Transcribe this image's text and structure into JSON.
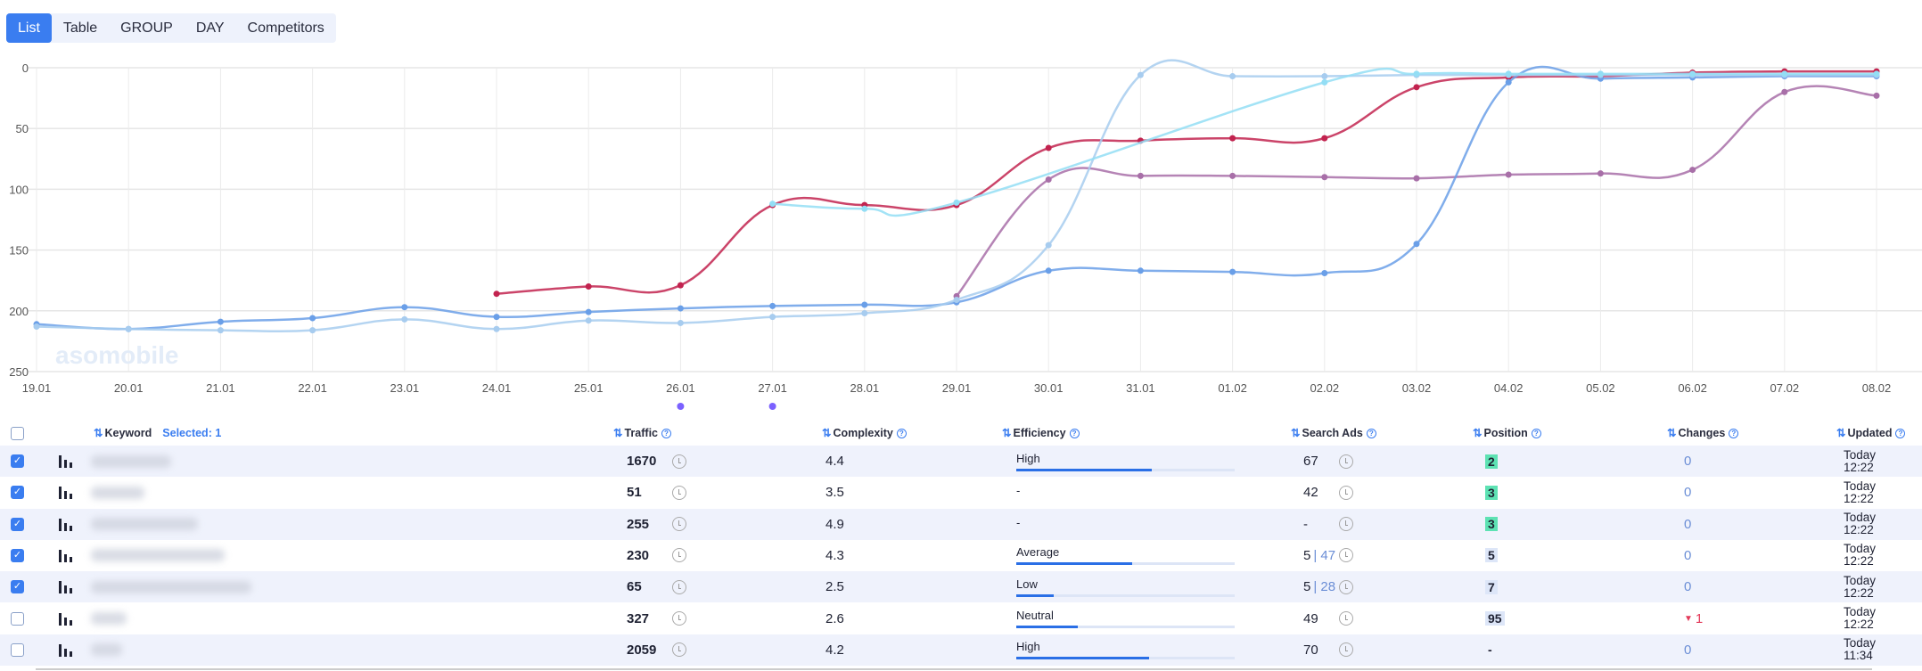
{
  "tabs": [
    {
      "label": "List",
      "active": true
    },
    {
      "label": "Table"
    },
    {
      "label": "GROUP"
    },
    {
      "label": "DAY"
    },
    {
      "label": "Competitors"
    }
  ],
  "watermark": "asomobile",
  "chart_data": {
    "type": "line",
    "y_inverted": true,
    "ylim": [
      0,
      250
    ],
    "yticks": [
      "0",
      "50",
      "100",
      "150",
      "200",
      "250"
    ],
    "categories": [
      "19.01",
      "20.01",
      "21.01",
      "22.01",
      "23.01",
      "24.01",
      "25.01",
      "26.01",
      "27.01",
      "28.01",
      "29.01",
      "30.01",
      "31.01",
      "01.02",
      "02.02",
      "03.02",
      "04.02",
      "05.02",
      "06.02",
      "07.02",
      "08.02"
    ],
    "grid": true,
    "event_markers": [
      "26.01",
      "27.01"
    ],
    "event_color": "#7b61ff",
    "series": [
      {
        "color": "#c2234f",
        "values": [
          null,
          null,
          null,
          null,
          null,
          186,
          180,
          179,
          113,
          113,
          113,
          66,
          60,
          58,
          58,
          16,
          8,
          7,
          4,
          3,
          3
        ]
      },
      {
        "color": "#a86fa8",
        "values": [
          null,
          null,
          null,
          null,
          null,
          null,
          null,
          null,
          null,
          null,
          188,
          92,
          89,
          89,
          90,
          91,
          88,
          87,
          84,
          20,
          23
        ]
      },
      {
        "color": "#6a9fe8",
        "values": [
          211,
          215,
          209,
          206,
          197,
          205,
          201,
          198,
          196,
          195,
          193,
          167,
          167,
          168,
          169,
          145,
          12,
          9,
          8,
          7,
          7
        ]
      },
      {
        "color": "#a7ccef",
        "values": [
          213,
          215,
          216,
          216,
          207,
          215,
          208,
          210,
          205,
          202,
          191,
          146,
          6,
          7,
          7,
          6,
          6,
          6,
          6,
          6,
          6
        ]
      },
      {
        "color": "#93def5",
        "values": [
          null,
          null,
          null,
          null,
          null,
          null,
          null,
          null,
          112,
          116,
          111,
          null,
          null,
          null,
          12,
          5,
          5,
          5,
          5,
          5,
          5
        ]
      }
    ]
  },
  "table": {
    "headers": {
      "keyword": "Keyword",
      "selected": "Selected: 1",
      "traffic": "Traffic",
      "complexity": "Complexity",
      "efficiency": "Efficiency",
      "search_ads": "Search Ads",
      "position": "Position",
      "changes": "Changes",
      "updated": "Updated"
    },
    "rows": [
      {
        "checked": true,
        "traffic": "1670",
        "complexity": "4.4",
        "efficiency": "High",
        "eff_pct": 62,
        "sa": "67",
        "sa2": "",
        "position": "2",
        "pos_style": "green",
        "changes": "0",
        "change_dir": "",
        "updated1": "Today",
        "updated2": "12:22"
      },
      {
        "checked": true,
        "traffic": "51",
        "complexity": "3.5",
        "efficiency": "-",
        "eff_pct": null,
        "sa": "42",
        "sa2": "",
        "position": "3",
        "pos_style": "green",
        "changes": "0",
        "change_dir": "",
        "updated1": "Today",
        "updated2": "12:22"
      },
      {
        "checked": true,
        "traffic": "255",
        "complexity": "4.9",
        "efficiency": "-",
        "eff_pct": null,
        "sa": "-",
        "sa2": "",
        "position": "3",
        "pos_style": "green",
        "changes": "0",
        "change_dir": "",
        "updated1": "Today",
        "updated2": "12:22"
      },
      {
        "checked": true,
        "traffic": "230",
        "complexity": "4.3",
        "efficiency": "Average",
        "eff_pct": 53,
        "sa": "5",
        "sa2": "47",
        "position": "5",
        "pos_style": "blue",
        "changes": "0",
        "change_dir": "",
        "updated1": "Today",
        "updated2": "12:22"
      },
      {
        "checked": true,
        "traffic": "65",
        "complexity": "2.5",
        "efficiency": "Low",
        "eff_pct": 17,
        "sa": "5",
        "sa2": "28",
        "position": "7",
        "pos_style": "blue",
        "changes": "0",
        "change_dir": "",
        "updated1": "Today",
        "updated2": "12:22"
      },
      {
        "checked": false,
        "traffic": "327",
        "complexity": "2.6",
        "efficiency": "Neutral",
        "eff_pct": 28,
        "sa": "49",
        "sa2": "",
        "position": "95",
        "pos_style": "blue",
        "changes": "1",
        "change_dir": "down",
        "updated1": "Today",
        "updated2": "12:22"
      },
      {
        "checked": false,
        "traffic": "2059",
        "complexity": "4.2",
        "efficiency": "High",
        "eff_pct": 61,
        "sa": "70",
        "sa2": "",
        "position": "-",
        "pos_style": "",
        "changes": "0",
        "change_dir": "",
        "updated1": "Today",
        "updated2": "11:34"
      }
    ]
  }
}
